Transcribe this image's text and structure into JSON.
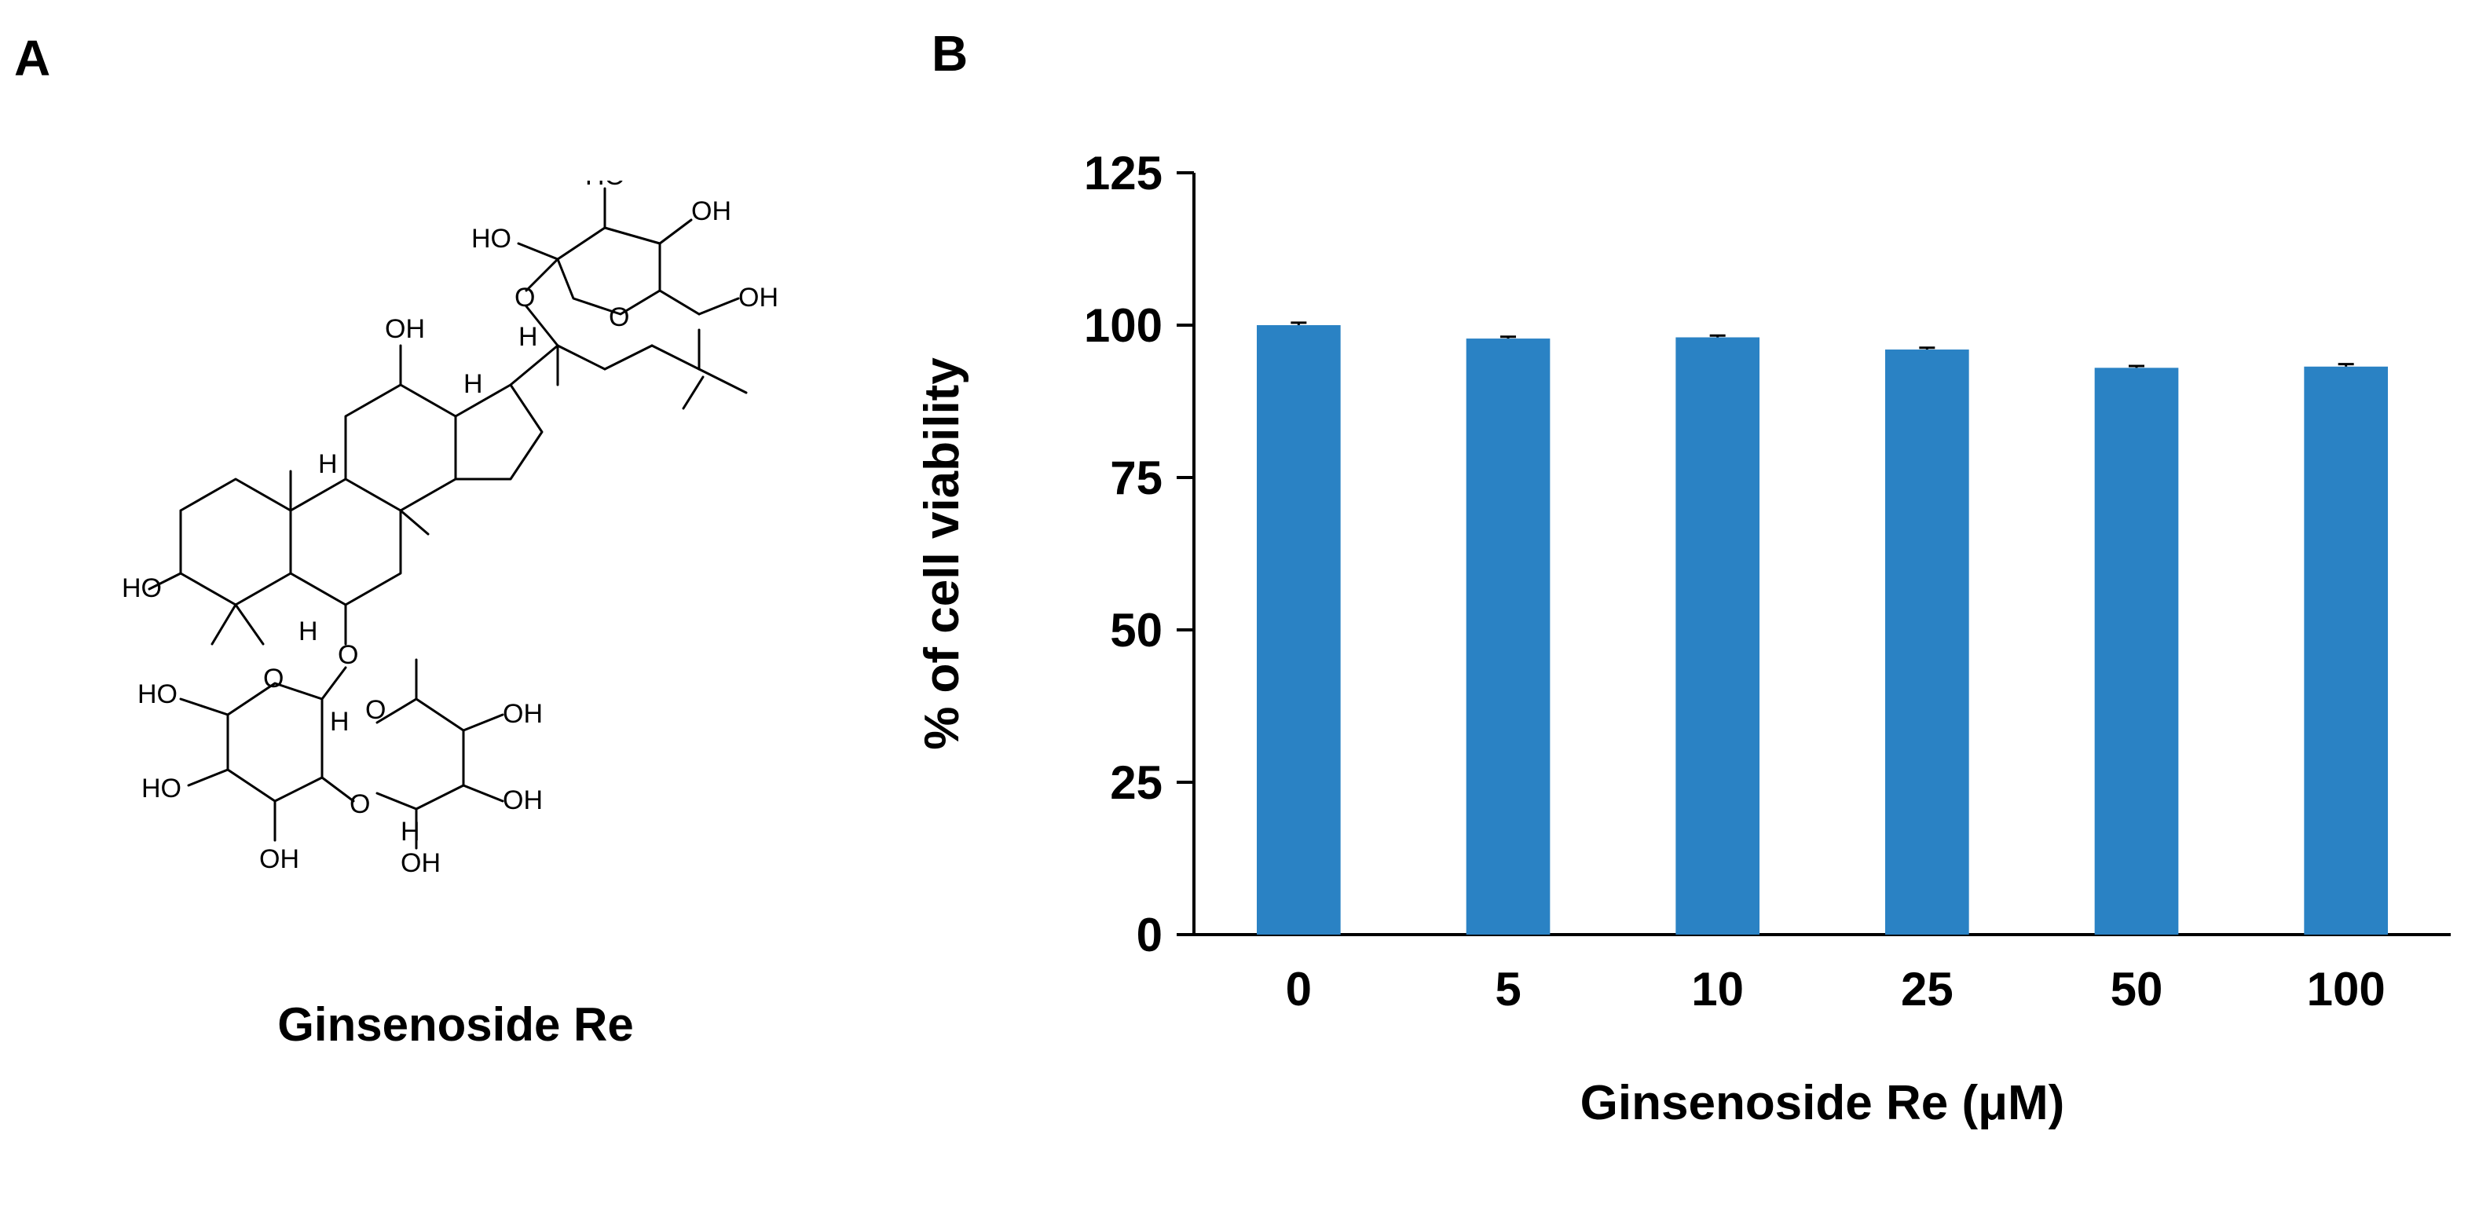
{
  "panels": {
    "a": "A",
    "b": "B"
  },
  "structure": {
    "name": "Ginsenoside Re",
    "atom_labels": {
      "ho_c3": "HO",
      "oh_c12": "OH",
      "h_c9": "H",
      "h_c13": "H",
      "h_c17": "H",
      "h_c5": "H",
      "o_c6": "O",
      "o_c20": "O",
      "glc1_ring_o": "O",
      "glc1_ho2": "HO",
      "glc1_ho3": "HO",
      "glc1_oh4": "OH",
      "glc1_oh6": "OH",
      "glc2_ring_o": "O",
      "glc2_h1": "H",
      "glc2_ho6": "HO",
      "glc2_ho4": "HO",
      "glc2_oh3": "OH",
      "link_o": "O",
      "rha_ring_o": "O",
      "rha_h1": "H",
      "rha_oh4": "OH",
      "rha_oh3": "OH",
      "rha_oh2": "OH"
    }
  },
  "chart_data": {
    "type": "bar",
    "categories": [
      "0",
      "5",
      "10",
      "25",
      "50",
      "100"
    ],
    "values": [
      100,
      97.8,
      98,
      96,
      93,
      93.2
    ],
    "errors": [
      0.4,
      0.3,
      0.3,
      0.3,
      0.3,
      0.4
    ],
    "xlabel": "Ginsenoside Re (μM)",
    "ylabel": "% of cell viability",
    "ylim": [
      0,
      125
    ],
    "yticks": [
      0,
      25,
      50,
      75,
      100,
      125
    ],
    "bar_color": "#2a82c4",
    "grid": false,
    "legend": "none"
  }
}
